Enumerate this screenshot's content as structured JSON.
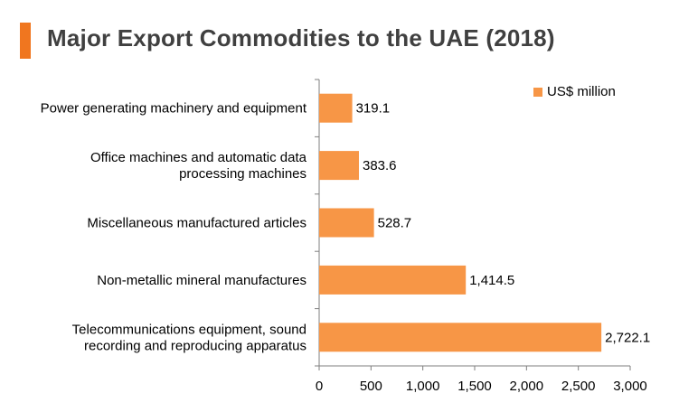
{
  "title": "Major Export Commodities to the UAE (2018)",
  "colors": {
    "accent": "#f0761f",
    "bar": "#f79646",
    "axis": "#7f7f7f",
    "title": "#404040"
  },
  "chart_data": {
    "type": "bar",
    "orientation": "horizontal",
    "title": "Major Export Commodities to the UAE (2018)",
    "categories": [
      [
        "Power generating machinery and equipment"
      ],
      [
        "Office machines and automatic data",
        "processing machines"
      ],
      [
        "Miscellaneous manufactured articles"
      ],
      [
        "Non-metallic mineral manufactures"
      ],
      [
        "Telecommunications equipment, sound",
        "recording and reproducing apparatus"
      ]
    ],
    "series": [
      {
        "name": "US$ million",
        "values": [
          319.1,
          383.6,
          528.7,
          1414.5,
          2722.1
        ],
        "labels": [
          "319.1",
          "383.6",
          "528.7",
          "1,414.5",
          "2,722.1"
        ]
      }
    ],
    "xlim": [
      0,
      3000
    ],
    "xticks": [
      0,
      500,
      1000,
      1500,
      2000,
      2500,
      3000
    ],
    "xtick_labels": [
      "0",
      "500",
      "1,000",
      "1,500",
      "2,000",
      "2,500",
      "3,000"
    ],
    "legend": "top-right",
    "grid": false
  }
}
